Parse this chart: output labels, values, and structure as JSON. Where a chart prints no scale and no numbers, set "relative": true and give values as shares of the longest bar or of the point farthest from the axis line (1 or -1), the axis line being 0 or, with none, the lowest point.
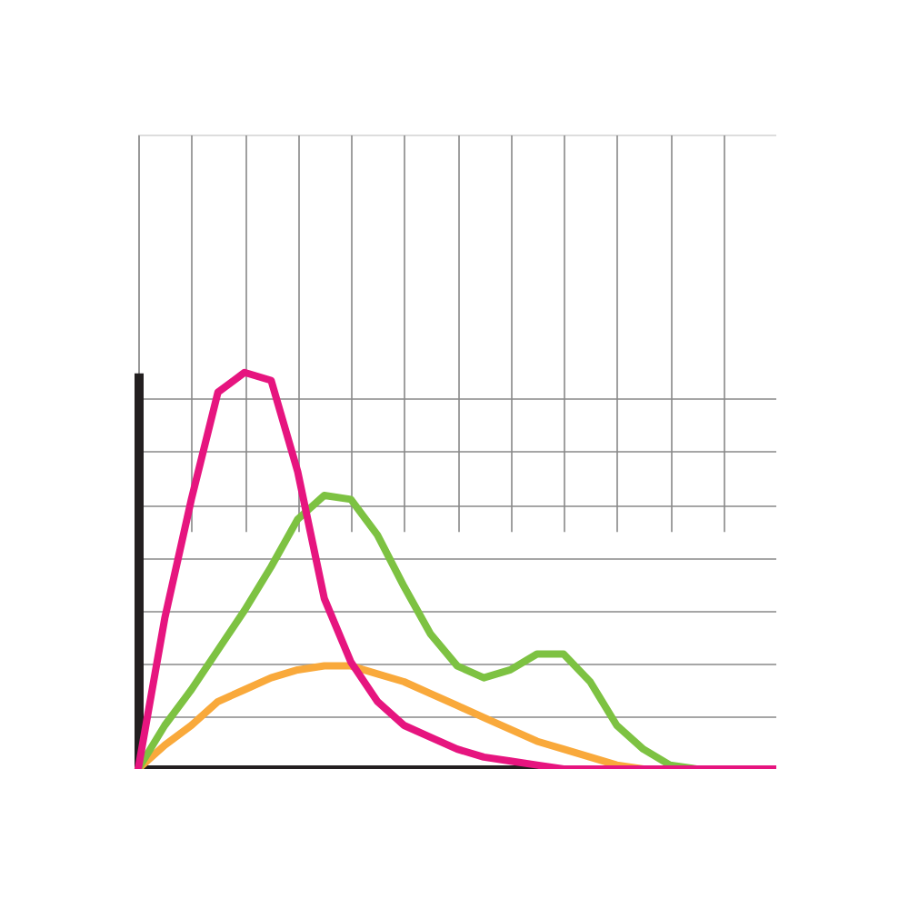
{
  "chart_data": {
    "type": "line",
    "relative": true,
    "grid": true,
    "marker": "none",
    "categories": [
      null,
      null,
      null,
      null,
      null,
      null,
      null,
      null,
      null,
      null,
      null,
      null,
      null,
      null,
      null,
      null,
      null,
      null,
      null,
      null,
      null,
      null,
      null,
      null,
      null
    ],
    "series": [
      {
        "color": "#f9a93b",
        "values": [
          0,
          0.06,
          0.11,
          0.17,
          0.2,
          0.23,
          0.25,
          0.26,
          0.26,
          0.24,
          0.22,
          0.19,
          0.16,
          0.13,
          0.1,
          0.07,
          0.05,
          0.03,
          0.01,
          0,
          0,
          null,
          null,
          null,
          null
        ]
      },
      {
        "color": "#7dc242",
        "values": [
          0,
          0.11,
          0.2,
          0.3,
          0.4,
          0.51,
          0.63,
          0.69,
          0.68,
          0.59,
          0.46,
          0.34,
          0.26,
          0.23,
          0.25,
          0.29,
          0.29,
          0.22,
          0.11,
          0.05,
          0.01,
          0,
          0,
          null,
          null
        ]
      },
      {
        "color": "#e6157f",
        "values": [
          0,
          0.38,
          0.68,
          0.95,
          1.0,
          0.98,
          0.75,
          0.43,
          0.27,
          0.17,
          0.11,
          0.08,
          0.05,
          0.03,
          0.02,
          0.01,
          0,
          0,
          0,
          0,
          0,
          0,
          0,
          0,
          0
        ]
      }
    ]
  }
}
